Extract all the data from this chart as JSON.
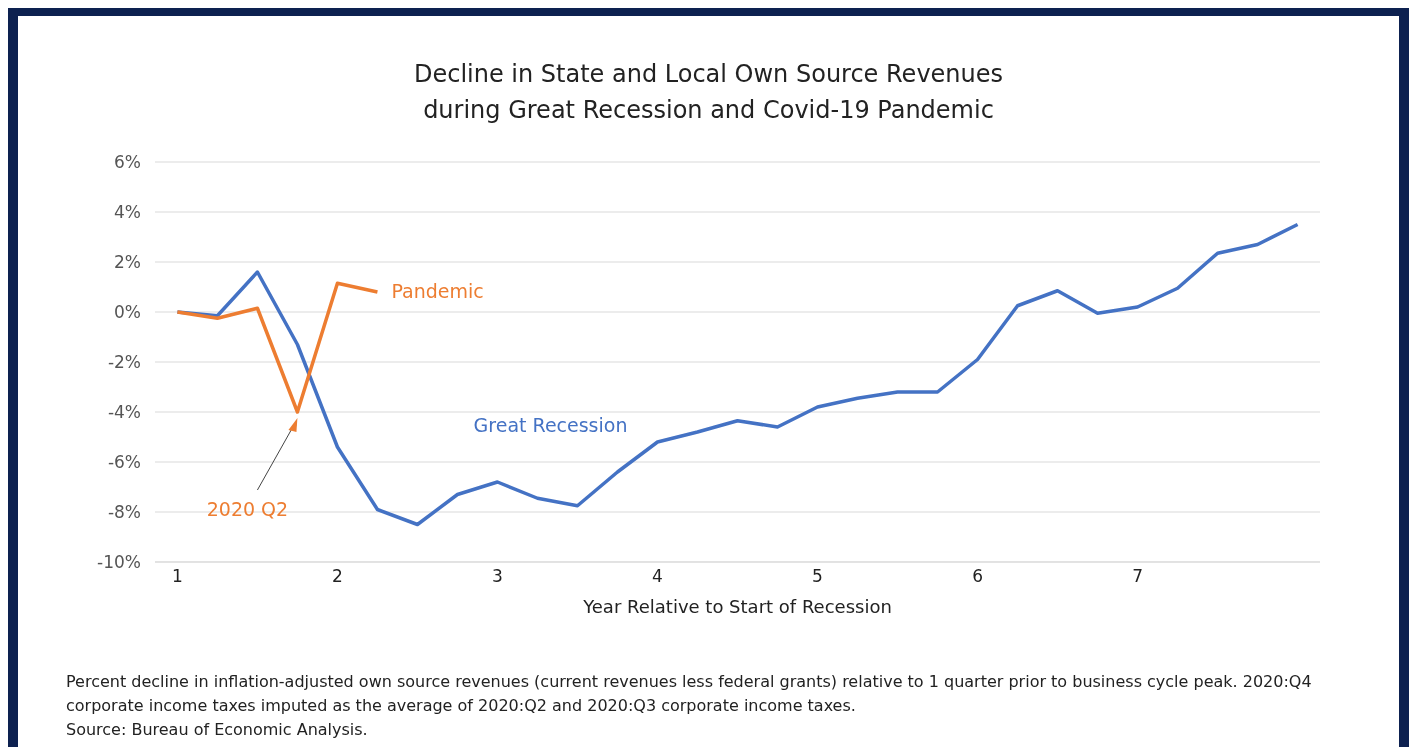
{
  "chart_data": {
    "type": "line",
    "title": "Decline in State and Local Own Source Revenues\nduring Great Recession and Covid-19 Pandemic",
    "xlabel": "Year Relative to Start of  Recession",
    "series": [
      {
        "name": "Great Recession",
        "color": "#4472c4",
        "x": [
          1,
          1.25,
          1.5,
          1.75,
          2,
          2.25,
          2.5,
          2.75,
          3,
          3.25,
          3.5,
          3.75,
          4,
          4.25,
          4.5,
          4.75,
          5,
          5.25,
          5.5,
          5.75,
          6,
          6.25,
          6.5,
          6.75,
          7,
          7.25,
          7.5,
          7.75,
          8
        ],
        "values": [
          0,
          -0.15,
          1.6,
          -1.3,
          -5.4,
          -7.9,
          -8.5,
          -7.3,
          -6.8,
          -7.45,
          -7.75,
          -6.4,
          -5.2,
          -4.8,
          -4.35,
          -4.6,
          -3.8,
          -3.45,
          -3.2,
          -3.2,
          -1.9,
          0.25,
          0.85,
          -0.05,
          0.2,
          0.95,
          2.35,
          2.7,
          3.5
        ]
      },
      {
        "name": "Pandemic",
        "color": "#ed7d31",
        "x": [
          1,
          1.25,
          1.5,
          1.75,
          2,
          2.25
        ],
        "values": [
          0,
          -0.25,
          0.15,
          -4,
          1.15,
          0.8
        ]
      }
    ],
    "xlim": [
      0.86,
      8.14
    ],
    "xticks": [
      1,
      2,
      3,
      4,
      5,
      6,
      7
    ],
    "ylim": [
      -10,
      6
    ],
    "yticks": [
      {
        "value": -10,
        "label": "-10%"
      },
      {
        "value": -8,
        "label": "-8%"
      },
      {
        "value": -6,
        "label": "-6%"
      },
      {
        "value": -4,
        "label": "-4%"
      },
      {
        "value": -2,
        "label": "-2%"
      },
      {
        "value": 0,
        "label": "0%"
      },
      {
        "value": 2,
        "label": "2%"
      },
      {
        "value": 4,
        "label": "4%"
      },
      {
        "value": 6,
        "label": "6%"
      }
    ],
    "grid": "y",
    "legend": false,
    "marker": "none",
    "line_style": "solid",
    "annotations": [
      "2020 Q2",
      "Percent decline in inflation-adjusted own source revenues (current revenues less federal grants) relative to 1 quarter prior to business cycle peak.  2020:Q4 corporate income taxes imputed as the average of 2020:Q2 and 2020:Q3 corporate income taxes.",
      "Source: Bureau of Economic Analysis."
    ]
  }
}
